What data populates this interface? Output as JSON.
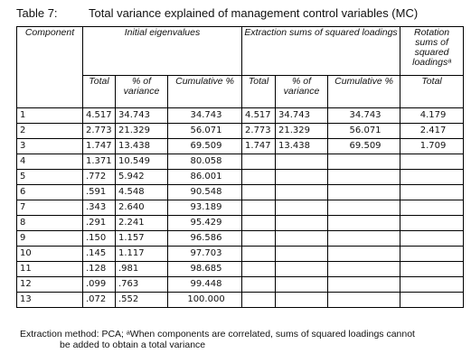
{
  "caption": {
    "number": "Table 7:",
    "title": "Total variance explained of management control variables (MC)"
  },
  "headers": {
    "component": "Component",
    "initial": "Initial eigenvalues",
    "extraction": "Extraction sums of squared loadings",
    "rotation": "Rotation sums of squared loadingsᵃ",
    "total": "Total",
    "pct": "% of variance",
    "cum": "Cumulative %"
  },
  "rows": [
    [
      "1",
      "4.517",
      "34.743",
      "34.743",
      "4.517",
      "34.743",
      "34.743",
      "4.179"
    ],
    [
      "2",
      "2.773",
      "21.329",
      "56.071",
      "2.773",
      "21.329",
      "56.071",
      "2.417"
    ],
    [
      "3",
      "1.747",
      "13.438",
      "69.509",
      "1.747",
      "13.438",
      "69.509",
      "1.709"
    ],
    [
      "4",
      "1.371",
      "10.549",
      "80.058",
      "",
      "",
      "",
      ""
    ],
    [
      "5",
      ".772",
      "5.942",
      "86.001",
      "",
      "",
      "",
      ""
    ],
    [
      "6",
      ".591",
      "4.548",
      "90.548",
      "",
      "",
      "",
      ""
    ],
    [
      "7",
      ".343",
      "2.640",
      "93.189",
      "",
      "",
      "",
      ""
    ],
    [
      "8",
      ".291",
      "2.241",
      "95.429",
      "",
      "",
      "",
      ""
    ],
    [
      "9",
      ".150",
      "1.157",
      "96.586",
      "",
      "",
      "",
      ""
    ],
    [
      "10",
      ".145",
      "1.117",
      "97.703",
      "",
      "",
      "",
      ""
    ],
    [
      "11",
      ".128",
      ".981",
      "98.685",
      "",
      "",
      "",
      ""
    ],
    [
      "12",
      ".099",
      ".763",
      "99.448",
      "",
      "",
      "",
      ""
    ],
    [
      "13",
      ".072",
      ".552",
      "100.000",
      "",
      "",
      "",
      ""
    ]
  ],
  "footnote": {
    "line1": "Extraction method: PCA; ᵃWhen components are correlated, sums of squared loadings cannot",
    "line2": "be added to obtain a total variance"
  }
}
